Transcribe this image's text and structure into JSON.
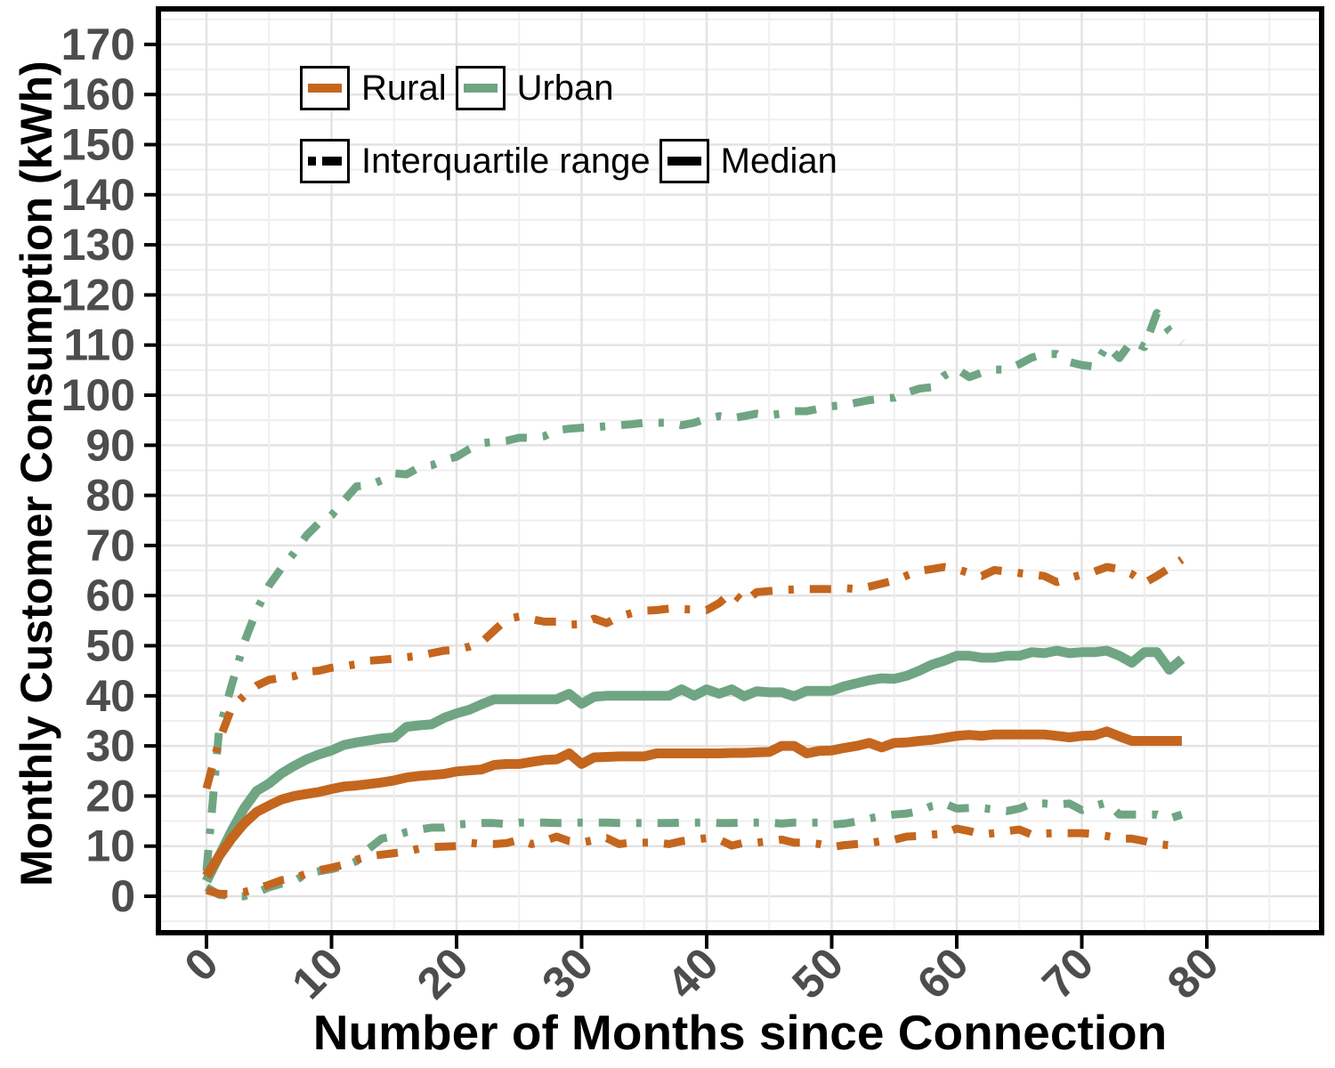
{
  "figure": {
    "y_axis_title": "Monthly Customer Consumption (kWh)",
    "x_axis_title": "Number of Months since Connection"
  },
  "legend": {
    "rural_label": "Rural",
    "urban_label": "Urban",
    "iqr_label": "Interquartile range",
    "median_label": "Median"
  },
  "colors": {
    "rural": "#C4661E",
    "urban": "#6FA583",
    "line_key_black": "#000000",
    "grid_major": "#e3e3e3",
    "grid_minor": "#efefef",
    "tick_text": "#4d4d4d",
    "panel_border": "#000000",
    "background": "#ffffff"
  },
  "chart_data": {
    "type": "line",
    "title": "",
    "xlabel": "Number of Months since Connection",
    "ylabel": "Monthly Customer Consumption (kWh)",
    "x_ticks": [
      0,
      10,
      20,
      30,
      40,
      50,
      60,
      70,
      80
    ],
    "y_ticks": [
      0,
      10,
      20,
      30,
      40,
      50,
      60,
      70,
      80,
      90,
      100,
      110,
      120,
      130,
      140,
      150,
      160,
      170
    ],
    "xlim": [
      -4,
      89
    ],
    "ylim": [
      -7,
      177
    ],
    "grid": "major and minor, light gray on white panel",
    "legend_position": "top-left inside panel, two rows",
    "months_start": 0,
    "months_step": 1,
    "series": [
      {
        "name": "Urban interquartile upper (Q3)",
        "group": "Urban",
        "style": "dashdot",
        "color": "#6FA583",
        "values": [
          5,
          33,
          42,
          50.5,
          57,
          62,
          65.5,
          68.5,
          72,
          74.5,
          76,
          79,
          81.8,
          82,
          83,
          84.4,
          84.2,
          85.6,
          86,
          87,
          87.7,
          89.2,
          90.4,
          90.7,
          90.9,
          91.5,
          91.5,
          91.8,
          93,
          93.3,
          93.5,
          93.6,
          93.8,
          94,
          94.2,
          94.5,
          94.5,
          94.5,
          94,
          94.5,
          95.3,
          95.8,
          95.4,
          95.8,
          96.3,
          96,
          96.3,
          96.8,
          96.8,
          97.3,
          97.8,
          98,
          98.5,
          99,
          99.3,
          99.5,
          100.5,
          101.3,
          101.6,
          103.9,
          105.2,
          103.6,
          104.5,
          105.1,
          105.1,
          106.2,
          107.5,
          108.2,
          108.2,
          106.6,
          106,
          105.7,
          109.9,
          107.4,
          110.8,
          109.6,
          116.4,
          112.8,
          110.5
        ]
      },
      {
        "name": "Rural interquartile upper (Q3)",
        "group": "Rural",
        "style": "dashdot",
        "color": "#C4661E",
        "values": [
          21.5,
          31,
          37.5,
          40,
          42,
          43.2,
          43.6,
          43.9,
          44.8,
          45,
          45.6,
          45.9,
          46.3,
          47,
          47.2,
          47.4,
          47.7,
          48,
          48.5,
          49,
          49.2,
          49.8,
          50.7,
          53,
          55.3,
          55.8,
          55.3,
          54.8,
          54.8,
          54.2,
          54.3,
          55.4,
          54.5,
          55.8,
          56.5,
          57,
          57.1,
          57.4,
          57.3,
          57.2,
          57.1,
          58.5,
          60.7,
          58.6,
          60.7,
          60.9,
          61.1,
          61.2,
          61.3,
          61.3,
          61.3,
          61.5,
          61.3,
          61.8,
          62.4,
          63,
          64,
          64.9,
          65.3,
          65.7,
          65.3,
          64.5,
          63.9,
          65.1,
          64.8,
          64.5,
          64.2,
          63.9,
          62.7,
          63.5,
          64.2,
          64.8,
          65.7,
          65.3,
          64.3,
          62.5,
          63.9,
          65.5,
          67.2
        ]
      },
      {
        "name": "Urban interquartile lower (Q1)",
        "group": "Urban",
        "style": "dashdot",
        "color": "#6FA583",
        "values": [
          1.8,
          0.3,
          0,
          0,
          0.7,
          1.8,
          2.5,
          3,
          4.5,
          5,
          5.4,
          6,
          7,
          9.5,
          11.5,
          12,
          12.8,
          13.3,
          13.7,
          13.7,
          14.3,
          14.5,
          14.6,
          14.6,
          14.4,
          14.7,
          14.7,
          14.7,
          14.6,
          14.6,
          14.7,
          14.7,
          14.7,
          14.6,
          14.6,
          14.6,
          14.6,
          14.6,
          14.7,
          14.7,
          14.7,
          14.6,
          14.6,
          14.7,
          14.7,
          14.7,
          14.5,
          14.7,
          14.7,
          14.7,
          14.3,
          14.5,
          14.9,
          15.5,
          16,
          16.3,
          16.5,
          17,
          18,
          18.5,
          17.5,
          17.6,
          17.6,
          17.3,
          17,
          17.5,
          18.5,
          18.5,
          18.3,
          18.5,
          17.2,
          18,
          18.7,
          16.3,
          16.3,
          16.3,
          16.3,
          15.5,
          16.3
        ]
      },
      {
        "name": "Rural interquartile lower (Q1)",
        "group": "Rural",
        "style": "dashdot",
        "color": "#C4661E",
        "values": [
          1.2,
          0.5,
          0.4,
          0.8,
          1.5,
          2.3,
          3.2,
          3.6,
          4.5,
          5.2,
          5.7,
          6.3,
          7.3,
          8,
          8.3,
          8.6,
          8.9,
          9.5,
          9.8,
          9.9,
          10,
          10.7,
          10.4,
          10.4,
          10.6,
          11.3,
          10.4,
          11,
          11.9,
          11,
          10.7,
          11.2,
          11.6,
          10.4,
          10.7,
          10.7,
          10.7,
          10.4,
          11,
          11.3,
          11.6,
          11.3,
          10.1,
          10.7,
          10.7,
          11,
          11.3,
          10.7,
          10.7,
          10.4,
          9.8,
          10.2,
          10.4,
          10.6,
          11,
          11.3,
          11.9,
          12,
          12.3,
          12.5,
          13.5,
          13,
          12.3,
          12.6,
          13,
          13.3,
          12.3,
          12.5,
          12.6,
          12.6,
          12.6,
          12.4,
          12,
          11.5,
          11.5,
          11,
          10.4,
          10.2,
          10.2
        ]
      },
      {
        "name": "Urban median",
        "group": "Urban",
        "style": "solid",
        "color": "#6FA583",
        "values": [
          3,
          8,
          13,
          17.5,
          21,
          22.5,
          24.5,
          26,
          27.3,
          28.3,
          29.1,
          30.2,
          30.7,
          31.1,
          31.5,
          31.7,
          33.8,
          34.1,
          34.3,
          35.6,
          36.5,
          37.2,
          38.3,
          39.3,
          39.3,
          39.3,
          39.3,
          39.3,
          39.3,
          40.4,
          38.4,
          39.8,
          40,
          40,
          40,
          40,
          40,
          40,
          41.3,
          40,
          41.3,
          40.4,
          41.3,
          39.9,
          40.9,
          40.7,
          40.7,
          39.9,
          41,
          41,
          41,
          41.9,
          42.5,
          43.1,
          43.5,
          43.4,
          44,
          45,
          46.2,
          47,
          48,
          48,
          47.6,
          47.6,
          48,
          48,
          48.7,
          48.5,
          49,
          48.5,
          48.7,
          48.7,
          49,
          48,
          46.6,
          48.7,
          48.7,
          45.2,
          47.3
        ]
      },
      {
        "name": "Rural median",
        "group": "Rural",
        "style": "solid",
        "color": "#C4661E",
        "values": [
          4,
          8,
          11.5,
          14.5,
          16.8,
          18.1,
          19.3,
          20,
          20.4,
          20.8,
          21.4,
          21.9,
          22.1,
          22.4,
          22.7,
          23.1,
          23.7,
          24,
          24.2,
          24.4,
          24.9,
          25.1,
          25.3,
          26.2,
          26.4,
          26.4,
          26.8,
          27.2,
          27.3,
          28.5,
          26.4,
          27.7,
          27.8,
          27.9,
          27.9,
          27.9,
          28.5,
          28.5,
          28.5,
          28.5,
          28.5,
          28.5,
          28.6,
          28.6,
          28.7,
          28.8,
          30,
          30,
          28.5,
          29,
          29.1,
          29.6,
          30,
          30.6,
          29.7,
          30.6,
          30.7,
          31,
          31.2,
          31.6,
          32,
          32.2,
          32,
          32.3,
          32.3,
          32.3,
          32.3,
          32.3,
          32,
          31.7,
          32,
          32.1,
          32.9,
          31.9,
          31,
          31,
          31,
          31,
          31
        ]
      }
    ]
  }
}
